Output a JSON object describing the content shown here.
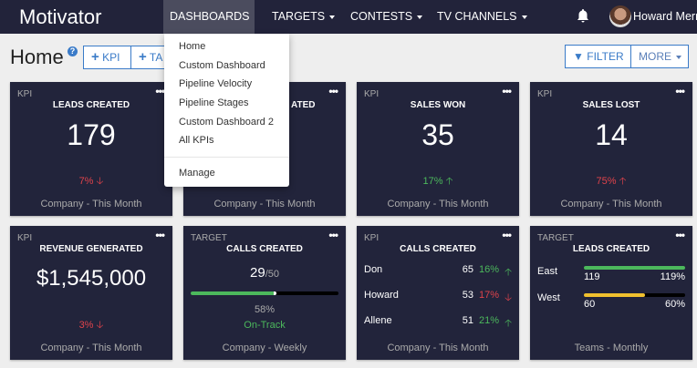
{
  "nav": {
    "brand": "Motivator",
    "items": [
      "DASHBOARDS",
      "TARGETS",
      "CONTESTS",
      "TV CHANNELS"
    ],
    "user": "Howard Merro"
  },
  "page": {
    "title": "Home",
    "help": "?",
    "add_kpi": "KPI",
    "add_target": "TA",
    "filter": "FILTER",
    "more": "MORE"
  },
  "dropdown": {
    "items": [
      "Home",
      "Custom Dashboard",
      "Pipeline Velocity",
      "Pipeline Stages",
      "Custom Dashboard 2",
      "All KPIs"
    ],
    "manage": "Manage"
  },
  "cards": [
    {
      "type": "KPI",
      "title": "LEADS CREATED",
      "value": "179",
      "change": "7%",
      "foot": "Company - This Month"
    },
    {
      "title_partial": "ATED",
      "foot": "Company - This Month"
    },
    {
      "type": "KPI",
      "title": "SALES WON",
      "value": "35",
      "change": "17%",
      "foot": "Company - This Month"
    },
    {
      "type": "KPI",
      "title": "SALES LOST",
      "value": "14",
      "change": "75%",
      "foot": "Company - This Month"
    },
    {
      "type": "KPI",
      "title": "REVENUE GENERATED",
      "value": "$1,545,000",
      "change": "3%",
      "foot": "Company - This Month"
    },
    {
      "type": "TARGET",
      "title": "CALLS CREATED",
      "value": "29",
      "goal": "/50",
      "progress": 58,
      "percent": "58%",
      "status": "On-Track",
      "foot": "Company - Weekly"
    },
    {
      "type": "KPI",
      "title": "CALLS CREATED",
      "rows": [
        {
          "name": "Don",
          "value": "65",
          "change": "16%"
        },
        {
          "name": "Howard",
          "value": "53",
          "change": "17%"
        },
        {
          "name": "Allene",
          "value": "51",
          "change": "21%"
        }
      ],
      "foot": "Company - This Month"
    },
    {
      "type": "TARGET",
      "title": "LEADS CREATED",
      "teams": [
        {
          "name": "East",
          "value": "119",
          "percent": "119%",
          "progress": 119
        },
        {
          "name": "West",
          "value": "60",
          "percent": "60%",
          "progress": 60
        }
      ],
      "foot": "Teams - Monthly"
    }
  ],
  "colors": {
    "nav": "#22233a",
    "card": "#22243b",
    "up": "#4cb85c",
    "down": "#e0434b",
    "accent": "#3a7bc8",
    "west_bar": "#f0c02e"
  }
}
